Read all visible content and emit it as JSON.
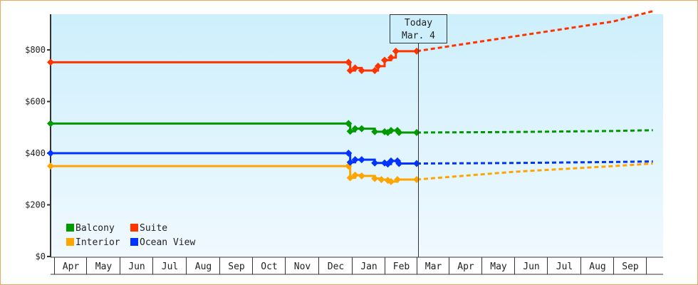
{
  "chart_data": {
    "type": "line",
    "title": "",
    "xlabel": "",
    "ylabel": "",
    "ylim": [
      0,
      940
    ],
    "yticks": [
      {
        "value": 0,
        "label": "$0"
      },
      {
        "value": 200,
        "label": "$200"
      },
      {
        "value": 400,
        "label": "$400"
      },
      {
        "value": 600,
        "label": "$600"
      },
      {
        "value": 800,
        "label": "$800"
      }
    ],
    "months": [
      "Apr",
      "May",
      "Jun",
      "Jul",
      "Aug",
      "Sep",
      "Oct",
      "Nov",
      "Dec",
      "Jan",
      "Feb",
      "Mar",
      "Apr",
      "May",
      "Jun",
      "Jul",
      "Aug",
      "Sep",
      ""
    ],
    "grid": false,
    "legend_position": "bottom-left inside",
    "today_marker": {
      "line1": "Today",
      "line2": "Mar. 4"
    },
    "series": [
      {
        "name": "Balcony",
        "color": "#009900",
        "historical": [
          [
            0,
            515
          ],
          [
            8.9,
            515
          ],
          [
            8.95,
            485
          ],
          [
            9.1,
            495
          ],
          [
            9.3,
            495
          ],
          [
            9.7,
            483
          ],
          [
            10.0,
            483
          ],
          [
            10.1,
            480
          ],
          [
            10.2,
            488
          ],
          [
            10.4,
            488
          ],
          [
            10.45,
            480
          ],
          [
            11.0,
            480
          ]
        ],
        "forecast": [
          [
            11.0,
            480
          ],
          [
            14.0,
            482
          ],
          [
            17.0,
            486
          ],
          [
            18.4,
            489
          ]
        ]
      },
      {
        "name": "Suite",
        "color": "#ff3300",
        "historical": [
          [
            0,
            752
          ],
          [
            8.9,
            752
          ],
          [
            8.95,
            720
          ],
          [
            9.1,
            730
          ],
          [
            9.3,
            720
          ],
          [
            9.7,
            720
          ],
          [
            9.8,
            737
          ],
          [
            10.0,
            760
          ],
          [
            10.2,
            770
          ],
          [
            10.35,
            795
          ],
          [
            11.0,
            795
          ]
        ],
        "forecast": [
          [
            11.0,
            795
          ],
          [
            14.0,
            852
          ],
          [
            17.0,
            910
          ],
          [
            18.4,
            950
          ]
        ]
      },
      {
        "name": "Interior",
        "color": "#ffa500",
        "historical": [
          [
            0,
            350
          ],
          [
            8.9,
            350
          ],
          [
            8.95,
            305
          ],
          [
            9.1,
            315
          ],
          [
            9.3,
            312
          ],
          [
            9.7,
            302
          ],
          [
            9.9,
            298
          ],
          [
            10.1,
            295
          ],
          [
            10.2,
            290
          ],
          [
            10.4,
            298
          ],
          [
            11.0,
            298
          ]
        ],
        "forecast": [
          [
            11.0,
            298
          ],
          [
            14.0,
            328
          ],
          [
            17.0,
            350
          ],
          [
            18.4,
            360
          ]
        ]
      },
      {
        "name": "Ocean View",
        "color": "#0033ff",
        "historical": [
          [
            0,
            400
          ],
          [
            8.9,
            400
          ],
          [
            8.95,
            365
          ],
          [
            9.1,
            375
          ],
          [
            9.3,
            375
          ],
          [
            9.7,
            362
          ],
          [
            10.0,
            362
          ],
          [
            10.1,
            358
          ],
          [
            10.2,
            370
          ],
          [
            10.4,
            370
          ],
          [
            10.45,
            360
          ],
          [
            11.0,
            360
          ]
        ],
        "forecast": [
          [
            11.0,
            360
          ],
          [
            14.0,
            362
          ],
          [
            17.0,
            366
          ],
          [
            18.4,
            368
          ]
        ]
      }
    ]
  },
  "legend": [
    {
      "label": "Balcony",
      "color": "#009900"
    },
    {
      "label": "Suite",
      "color": "#ff3300"
    },
    {
      "label": "Interior",
      "color": "#ffa500"
    },
    {
      "label": "Ocean View",
      "color": "#0033ff"
    }
  ],
  "labels": {
    "today_line1": "Today",
    "today_line2": "Mar. 4"
  }
}
